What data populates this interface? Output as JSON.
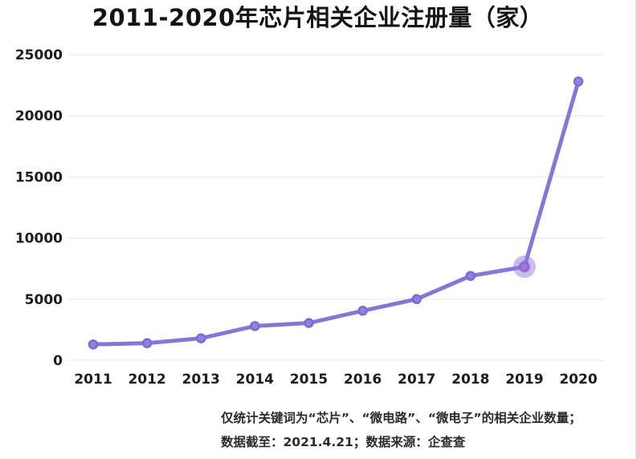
{
  "title": "2011-2020年芯片相关企业注册量（家）",
  "chart_data": {
    "type": "line",
    "title": "2011-2020年芯片相关企业注册量（家）",
    "categories": [
      "2011",
      "2012",
      "2013",
      "2014",
      "2015",
      "2016",
      "2017",
      "2018",
      "2019",
      "2020"
    ],
    "series": [
      {
        "name": "芯片相关企业注册量",
        "values": [
          1300,
          1400,
          1800,
          2800,
          3050,
          4050,
          5000,
          6900,
          7650,
          22800
        ]
      }
    ],
    "xlabel": "",
    "ylabel": "",
    "ylim": [
      0,
      25000
    ],
    "yticks": [
      0,
      5000,
      10000,
      15000,
      20000,
      25000
    ],
    "grid": true,
    "legend": false,
    "line_color": "#8677d7",
    "marker_fill": "#9183dd",
    "marker_stroke": "#7b6bd0",
    "highlight_index": 9,
    "highlight_halo_color": "rgba(143,125,224,0.50)",
    "highlight_ring_color": "rgba(168,92,198,0.65)"
  },
  "footnotes": {
    "line1": "仅统计关键词为“芯片”、“微电路”、“微电子”的相关企业数量；",
    "line2": "数据截至：2021.4.21；数据来源：企查查"
  }
}
